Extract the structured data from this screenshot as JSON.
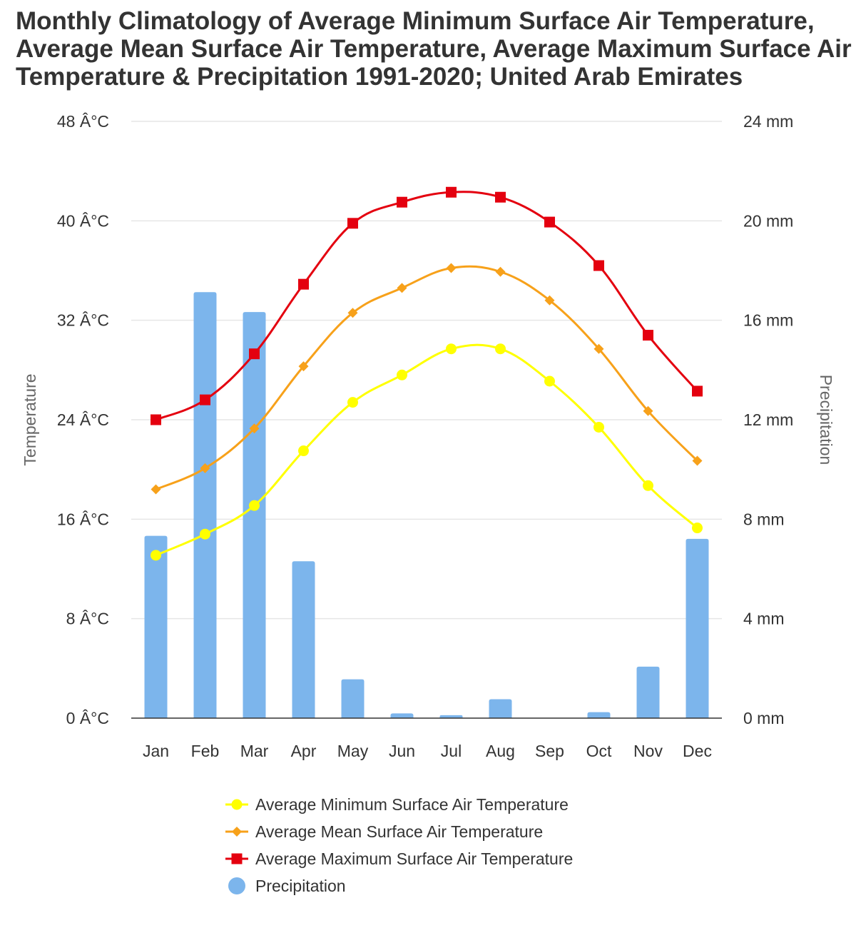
{
  "chart_data": {
    "type": "line",
    "title_lines": [
      "Monthly Climatology of Average Minimum Surface Air Temperature,",
      "Average Mean Surface Air Temperature, Average Maximum Surface Air",
      "Temperature & Precipitation 1991-2020; United Arab Emirates"
    ],
    "categories": [
      "Jan",
      "Feb",
      "Mar",
      "Apr",
      "May",
      "Jun",
      "Jul",
      "Aug",
      "Sep",
      "Oct",
      "Nov",
      "Dec"
    ],
    "y_left": {
      "label": "Temperature",
      "min": 0,
      "max": 48,
      "ticks": [
        0,
        8,
        16,
        24,
        32,
        40,
        48
      ],
      "tick_labels": [
        "0 Â°C",
        "8 Â°C",
        "16 Â°C",
        "24 Â°C",
        "32 Â°C",
        "40 Â°C",
        "48 Â°C"
      ]
    },
    "y_right": {
      "label": "Precipitation",
      "min": 0,
      "max": 24,
      "ticks": [
        0,
        4,
        8,
        12,
        16,
        20,
        24
      ],
      "tick_labels": [
        "0 mm",
        "4 mm",
        "8 mm",
        "12 mm",
        "16 mm",
        "20 mm",
        "24 mm"
      ]
    },
    "series": [
      {
        "name": "Average Minimum Surface Air Temperature",
        "type": "line",
        "axis": "left",
        "color": "#ffff00",
        "marker": "circle",
        "values": [
          13.1,
          14.8,
          17.1,
          21.5,
          25.4,
          27.6,
          29.7,
          29.7,
          27.1,
          23.4,
          18.7,
          15.3
        ]
      },
      {
        "name": "Average Mean Surface Air Temperature",
        "type": "line",
        "axis": "left",
        "color": "#f7a11a",
        "marker": "diamond",
        "values": [
          18.4,
          20.1,
          23.3,
          28.3,
          32.6,
          34.6,
          36.2,
          35.9,
          33.6,
          29.7,
          24.7,
          20.7
        ]
      },
      {
        "name": "Average Maximum Surface Air Temperature",
        "type": "line",
        "axis": "left",
        "color": "#e4000f",
        "marker": "square",
        "values": [
          24.0,
          25.6,
          29.3,
          34.9,
          39.8,
          41.5,
          42.3,
          41.9,
          39.9,
          36.4,
          30.8,
          26.3
        ]
      },
      {
        "name": "Precipitation",
        "type": "bar",
        "axis": "right",
        "color": "#7cb5ec",
        "marker": "circle",
        "values": [
          7.33,
          17.13,
          16.33,
          6.31,
          1.56,
          0.19,
          0.12,
          0.76,
          0.0,
          0.24,
          2.07,
          7.21
        ]
      }
    ],
    "legend_position": "bottom"
  }
}
